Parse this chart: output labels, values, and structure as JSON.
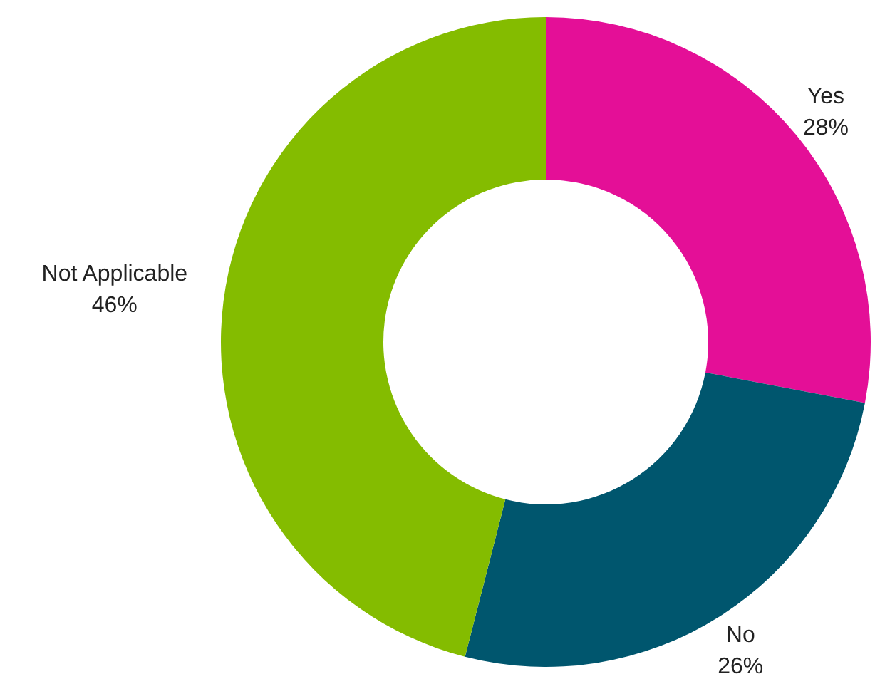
{
  "chart_data": {
    "type": "donut",
    "categories": [
      "Yes",
      "No",
      "Not Applicable"
    ],
    "values": [
      28,
      26,
      46
    ],
    "colors": [
      "#e40f97",
      "#00566e",
      "#84bc00"
    ],
    "value_labels": [
      "28%",
      "26%",
      "46%"
    ]
  }
}
